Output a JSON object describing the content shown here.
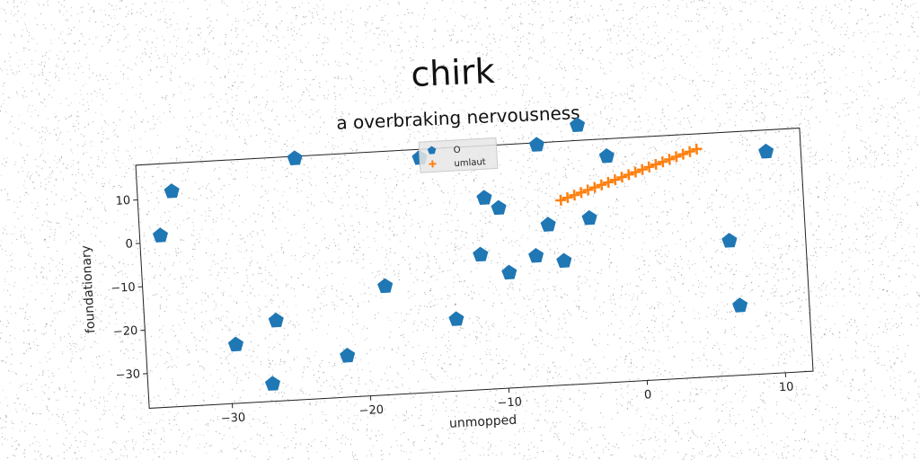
{
  "chart_data": {
    "type": "scatter",
    "title": "chirk",
    "subtitle": "a overbraking nervousness",
    "xlabel": "unmopped",
    "ylabel": "foundationary",
    "xlim": [
      -36,
      12
    ],
    "ylim": [
      -38,
      18
    ],
    "x_ticks": [
      -30,
      -20,
      -10,
      0,
      10
    ],
    "y_ticks": [
      -30,
      -20,
      -10,
      0,
      10
    ],
    "grid": false,
    "legend_position": "top-center",
    "series": [
      {
        "name": "O",
        "marker": "pentagon",
        "color": "#1f77b4",
        "points": [
          [
            -34.5,
            1.5
          ],
          [
            -33.5,
            11.5
          ],
          [
            -24.5,
            17.5
          ],
          [
            -29.5,
            -24.5
          ],
          [
            -27,
            -34
          ],
          [
            -26.5,
            -19.5
          ],
          [
            -21.5,
            -28.5
          ],
          [
            -18.5,
            -13
          ],
          [
            -15.5,
            16
          ],
          [
            -13.5,
            -21.5
          ],
          [
            -11.5,
            -7
          ],
          [
            -11,
            6
          ],
          [
            -10,
            3.5
          ],
          [
            -9.5,
            -11.5
          ],
          [
            -7.5,
            -8
          ],
          [
            -7,
            17.5
          ],
          [
            -6.5,
            -1
          ],
          [
            -5.5,
            -9.5
          ],
          [
            -4,
            21.5
          ],
          [
            -3.5,
            0
          ],
          [
            -2,
            14
          ],
          [
            6.5,
            -7
          ],
          [
            7,
            -22
          ],
          [
            9.5,
            13
          ]
        ]
      },
      {
        "name": "umlaut",
        "marker": "plus",
        "color": "#ff7f0e",
        "points": [
          [
            -5.5,
            4.5
          ],
          [
            -5,
            5
          ],
          [
            -4.5,
            5.5
          ],
          [
            -4,
            6
          ],
          [
            -3.5,
            6.5
          ],
          [
            -3,
            7
          ],
          [
            -2.5,
            7.5
          ],
          [
            -2,
            8
          ],
          [
            -1.5,
            8.5
          ],
          [
            -1,
            9
          ],
          [
            -0.5,
            9.5
          ],
          [
            0,
            10
          ],
          [
            0.5,
            10.5
          ],
          [
            1,
            11
          ],
          [
            1.5,
            11.5
          ],
          [
            2,
            12
          ],
          [
            2.5,
            12.5
          ],
          [
            3,
            13
          ],
          [
            3.5,
            13.5
          ],
          [
            4,
            14
          ],
          [
            4.5,
            14.5
          ]
        ]
      }
    ]
  }
}
